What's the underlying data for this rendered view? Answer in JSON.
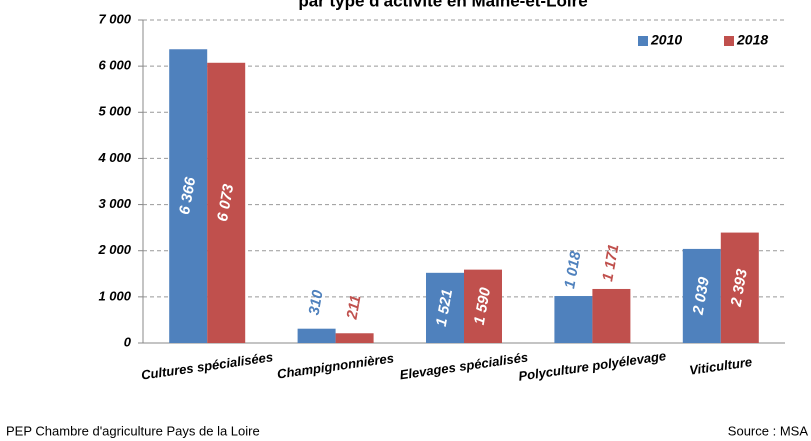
{
  "chart_data": {
    "type": "bar",
    "title": "par type d'activité en Maine-et-Loire",
    "categories": [
      "Cultures spécialisées",
      "Champignonnières",
      "Elevages spécialisés",
      "Polyculture polyélevage",
      "Viticulture"
    ],
    "series": [
      {
        "name": "2010",
        "color": "#4f81bd",
        "values": [
          6366,
          310,
          1521,
          1018,
          2039
        ],
        "value_labels": [
          "6 366",
          "310",
          "1 521",
          "1 018",
          "2 039"
        ]
      },
      {
        "name": "2018",
        "color": "#c0504d",
        "values": [
          6073,
          211,
          1590,
          1171,
          2393
        ],
        "value_labels": [
          "6 073",
          "211",
          "1 590",
          "1 171",
          "2 393"
        ]
      }
    ],
    "ylim": [
      0,
      7000
    ],
    "yticks": [
      {
        "value": 0,
        "label": "0"
      },
      {
        "value": 1000,
        "label": "1 000"
      },
      {
        "value": 2000,
        "label": "2 000"
      },
      {
        "value": 3000,
        "label": "3 000"
      },
      {
        "value": 4000,
        "label": "4 000"
      },
      {
        "value": 5000,
        "label": "5 000"
      },
      {
        "value": 6000,
        "label": "6 000"
      },
      {
        "value": 7000,
        "label": "7 000"
      }
    ],
    "grid": true,
    "legend": "top-right",
    "footer_left": "PEP Chambre d'agriculture Pays de la Loire",
    "footer_right": "Source : MSA"
  }
}
